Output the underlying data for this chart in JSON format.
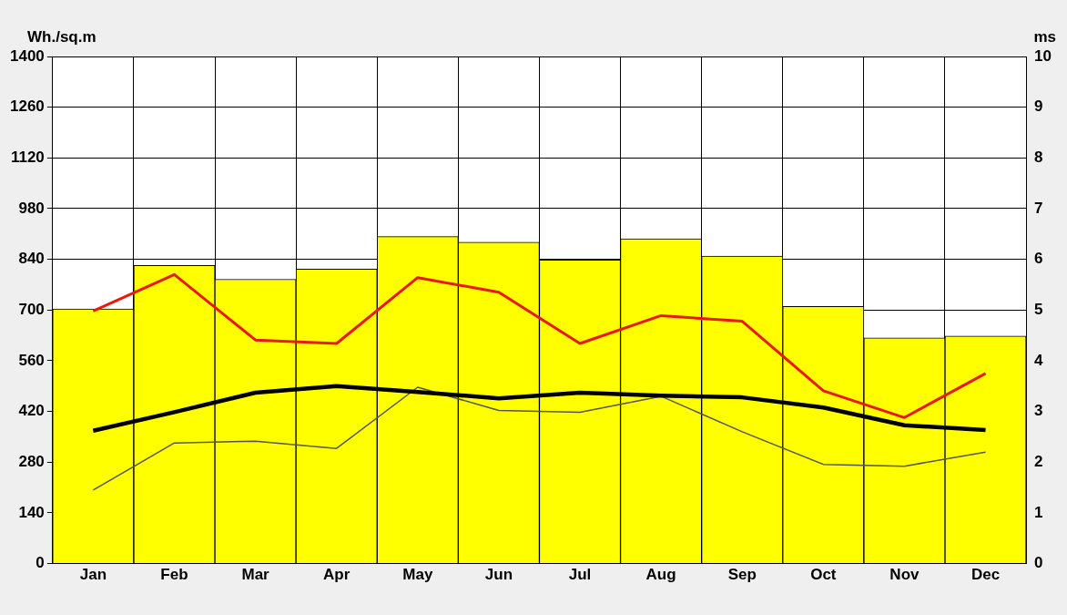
{
  "chart_data": {
    "type": "bar",
    "ylabel": "Wh./sq.m",
    "y2label": "ms",
    "categories": [
      "Jan",
      "Feb",
      "Mar",
      "Apr",
      "May",
      "Jun",
      "Jul",
      "Aug",
      "Sep",
      "Oct",
      "Nov",
      "Dec"
    ],
    "series": [
      {
        "color": "#ffff00",
        "values": [
          703,
          823,
          785,
          813,
          903,
          887,
          838,
          897,
          849,
          710,
          623,
          628
        ]
      },
      {
        "type": "line",
        "color": "#e8190e",
        "axis": "y2",
        "values": [
          4.98,
          5.7,
          4.41,
          4.34,
          5.64,
          5.35,
          4.34,
          4.89,
          4.78,
          3.41,
          2.88,
          3.75
        ]
      },
      {
        "type": "line",
        "color": "#000000",
        "values": [
          367,
          418,
          472,
          490,
          474,
          456,
          472,
          464,
          459,
          431,
          382,
          369
        ]
      },
      {
        "type": "line",
        "color": "#555555",
        "values": [
          203,
          333,
          338,
          318,
          487,
          423,
          418,
          462,
          364,
          274,
          269,
          308
        ]
      }
    ],
    "ylim": [
      0,
      1400
    ],
    "yticks": [
      0,
      140,
      280,
      420,
      560,
      700,
      840,
      980,
      1120,
      1260,
      1400
    ],
    "y2lim": [
      0,
      10
    ],
    "y2ticks": [
      0,
      1,
      2,
      3,
      4,
      5,
      6,
      7,
      8,
      9,
      10
    ],
    "grid": true,
    "legend": false,
    "marker": "none",
    "line_style": "solid"
  }
}
